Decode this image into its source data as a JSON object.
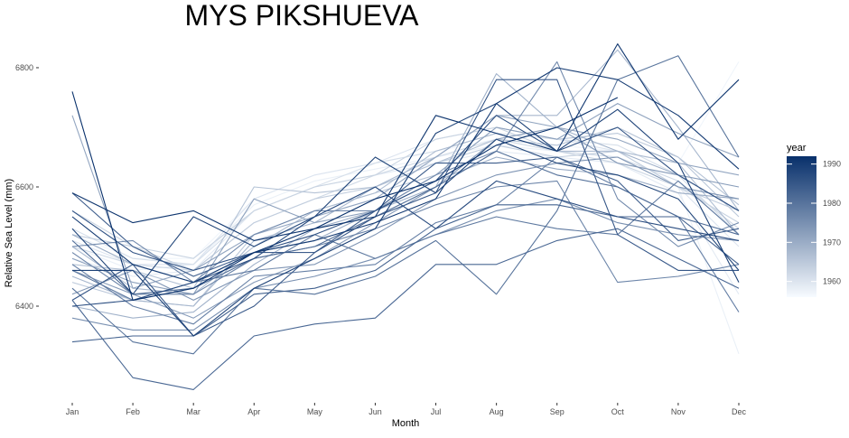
{
  "chart_data": {
    "type": "line",
    "title": "MYS PIKSHUEVA",
    "xlabel": "Month",
    "ylabel": "Relative Sea Level (mm)",
    "categories": [
      "Jan",
      "Feb",
      "Mar",
      "Apr",
      "May",
      "Jun",
      "Jul",
      "Aug",
      "Sep",
      "Oct",
      "Nov",
      "Dec"
    ],
    "yticks": [
      6400,
      6600,
      6800
    ],
    "ylim": [
      6247,
      6856
    ],
    "grid": false,
    "legend": {
      "title": "year",
      "position": "right",
      "type": "colorbar",
      "range": [
        1956,
        1992
      ],
      "ticks": [
        1960,
        1970,
        1980,
        1990
      ],
      "color_low": "#f7fbff",
      "color_high": "#08306b"
    },
    "series": [
      {
        "year": 1992,
        "values": [
          6760,
          6410,
          6430,
          6490,
          6530,
          6580,
          6610,
          6670,
          6700,
          6750,
          null,
          null
        ]
      },
      {
        "year": 1991,
        "values": [
          6590,
          6540,
          6560,
          6510,
          6530,
          6550,
          6720,
          6690,
          6660,
          6840,
          6680,
          6780
        ]
      },
      {
        "year": 1990,
        "values": [
          6550,
          6470,
          6440,
          6490,
          6510,
          6540,
          6580,
          6740,
          6800,
          6780,
          6720,
          6630
        ]
      },
      {
        "year": 1989,
        "values": [
          6460,
          6460,
          6350,
          6430,
          6480,
          6530,
          6690,
          6740,
          6660,
          6730,
          6640,
          6440
        ]
      },
      {
        "year": 1988,
        "values": [
          6530,
          6420,
          6550,
          6500,
          6550,
          6650,
          6590,
          6680,
          6640,
          6620,
          6580,
          6460
        ]
      },
      {
        "year": 1987,
        "values": [
          6400,
          6410,
          6440,
          6480,
          6550,
          6600,
          6530,
          6610,
          6580,
          6550,
          6530,
          6510
        ]
      },
      {
        "year": 1986,
        "values": [
          6560,
          6490,
          6460,
          6490,
          6520,
          6560,
          6610,
          6720,
          6660,
          6700,
          6620,
          6560
        ]
      },
      {
        "year": 1985,
        "values": [
          6410,
          6470,
          6350,
          6400,
          6490,
          6550,
          6590,
          6780,
          6780,
          6520,
          6460,
          6460
        ]
      },
      {
        "year": 1984,
        "values": [
          6590,
          6500,
          6450,
          6490,
          6490,
          6560,
          6640,
          6640,
          6650,
          6610,
          6510,
          6530
        ]
      },
      {
        "year": 1983,
        "values": [
          6340,
          6350,
          6350,
          6420,
          6430,
          6460,
          6530,
          6570,
          6570,
          6550,
          6550,
          6470
        ]
      },
      {
        "year": 1982,
        "values": [
          6410,
          6280,
          6260,
          6350,
          6370,
          6380,
          6470,
          6470,
          6510,
          6530,
          6480,
          6430
        ]
      },
      {
        "year": 1981,
        "values": [
          6510,
          6420,
          6430,
          6480,
          6500,
          6550,
          6600,
          6660,
          6620,
          6600,
          6550,
          6520
        ]
      },
      {
        "year": 1980,
        "values": [
          6430,
          6340,
          6320,
          6430,
          6420,
          6450,
          6510,
          6420,
          6560,
          6780,
          6820,
          6650
        ]
      },
      {
        "year": 1979,
        "values": [
          6460,
          6410,
          6440,
          6460,
          6520,
          6480,
          6520,
          6550,
          6530,
          6520,
          6610,
          6520
        ]
      },
      {
        "year": 1978,
        "values": [
          6470,
          6400,
          6370,
          6450,
          6460,
          6470,
          6540,
          6570,
          6650,
          6600,
          6550,
          6390
        ]
      },
      {
        "year": 1977,
        "values": [
          6490,
          6420,
          6420,
          6480,
          6500,
          6530,
          6570,
          6600,
          6610,
          6440,
          6450,
          6470
        ]
      },
      {
        "year": 1976,
        "values": [
          6500,
          6510,
          6440,
          6520,
          6560,
          6560,
          6620,
          6660,
          6810,
          6580,
          6500,
          6540
        ]
      },
      {
        "year": 1975,
        "values": [
          6380,
          6360,
          6360,
          6430,
          6450,
          6480,
          6520,
          6560,
          6580,
          6540,
          6520,
          6510
        ]
      },
      {
        "year": 1974,
        "values": [
          6420,
          6460,
          6410,
          6460,
          6470,
          6520,
          6580,
          6620,
          6640,
          6650,
          6600,
          6580
        ]
      },
      {
        "year": 1973,
        "values": [
          6460,
          6420,
          6380,
          6440,
          6480,
          6540,
          6600,
          6680,
          6700,
          6640,
          6620,
          6600
        ]
      },
      {
        "year": 1972,
        "values": [
          6480,
          6440,
          6420,
          6580,
          6540,
          6560,
          6620,
          6700,
          6680,
          6740,
          6690,
          6650
        ]
      },
      {
        "year": 1971,
        "values": [
          6720,
          6430,
          6460,
          6520,
          6550,
          6580,
          6650,
          6720,
          6700,
          6680,
          6640,
          6620
        ]
      },
      {
        "year": 1970,
        "values": [
          6520,
          6470,
          6440,
          6490,
          6510,
          6560,
          6610,
          6650,
          6630,
          6620,
          6590,
          6580
        ]
      },
      {
        "year": 1969,
        "values": [
          6400,
          6380,
          6390,
          6470,
          6530,
          6560,
          6600,
          6790,
          6700,
          6660,
          6620,
          6560
        ]
      },
      {
        "year": 1968,
        "values": [
          6450,
          6410,
          6400,
          6510,
          6540,
          6600,
          6650,
          6720,
          6720,
          6830,
          6700,
          6560
        ]
      },
      {
        "year": 1967,
        "values": [
          6500,
          6430,
          6420,
          6500,
          6560,
          6590,
          6660,
          6690,
          6660,
          6660,
          6640,
          6520
        ]
      },
      {
        "year": 1966,
        "values": [
          6470,
          6460,
          6430,
          6600,
          6590,
          6600,
          6640,
          6680,
          6670,
          6700,
          6650,
          6570
        ]
      },
      {
        "year": 1965,
        "values": [
          6440,
          6410,
          6400,
          6520,
          6560,
          6590,
          6620,
          6700,
          6680,
          6690,
          6650,
          6550
        ]
      },
      {
        "year": 1964,
        "values": [
          6520,
          6500,
          6460,
          6540,
          6580,
          6600,
          6640,
          6670,
          6650,
          6660,
          6600,
          6560
        ]
      },
      {
        "year": 1963,
        "values": [
          6560,
          6500,
          6480,
          6560,
          6600,
          6620,
          6680,
          6700,
          6660,
          6640,
          6600,
          6540
        ]
      },
      {
        "year": 1962,
        "values": [
          6500,
          6470,
          6460,
          6540,
          6580,
          6620,
          6650,
          6680,
          6660,
          6650,
          6610,
          6530
        ]
      },
      {
        "year": 1961,
        "values": [
          6530,
          6480,
          6470,
          6560,
          6600,
          6640,
          6660,
          6690,
          6680,
          6670,
          6620,
          6520
        ]
      },
      {
        "year": 1960,
        "values": [
          6510,
          6470,
          6470,
          6580,
          6620,
          6640,
          6680,
          6700,
          6680,
          6660,
          6600,
          6500
        ]
      },
      {
        "year": 1959,
        "values": [
          6480,
          6450,
          6460,
          6560,
          6600,
          6620,
          6640,
          6660,
          6650,
          6640,
          6590,
          6420
        ]
      },
      {
        "year": 1958,
        "values": [
          6500,
          6460,
          6470,
          6570,
          6610,
          6630,
          6650,
          6670,
          6660,
          6650,
          6600,
          6320
        ]
      },
      {
        "year": 1957,
        "values": [
          6520,
          6480,
          6480,
          6580,
          6620,
          6640,
          6660,
          6680,
          6670,
          6660,
          6640,
          6810
        ]
      }
    ]
  }
}
